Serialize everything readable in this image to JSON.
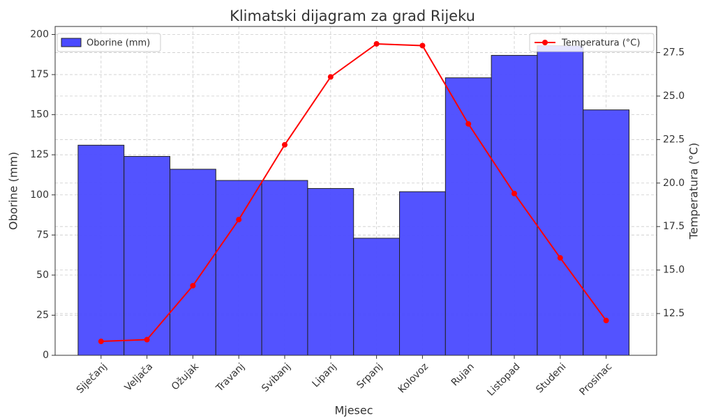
{
  "chart_data": {
    "type": "bar-line",
    "title": "Klimatski dijagram za grad Rijeku",
    "xlabel": "Mjesec",
    "ylabel": "Oborine (mm)",
    "y2label": "Temperatura (°C)",
    "categories": [
      "Siječanj",
      "Veljača",
      "Ožujak",
      "Travanj",
      "Svibanj",
      "Lipanj",
      "Srpanj",
      "Kolovoz",
      "Rujan",
      "Listopad",
      "Studeni",
      "Prosinac"
    ],
    "series": [
      {
        "name": "Oborine (mm)",
        "type": "bar",
        "color": "#4a4aff",
        "values": [
          131,
          124,
          116,
          109,
          109,
          104,
          73,
          102,
          173,
          187,
          193,
          153
        ]
      },
      {
        "name": "Temperatura (°C)",
        "type": "line",
        "axis": "y2",
        "color": "#ff0000",
        "values": [
          10.9,
          11.0,
          14.1,
          17.9,
          22.2,
          26.1,
          28.0,
          27.9,
          23.4,
          19.4,
          15.7,
          12.1
        ]
      }
    ],
    "ylim": [
      0,
      205
    ],
    "yticks": [
      0,
      25,
      50,
      75,
      100,
      125,
      150,
      175,
      200
    ],
    "y2lim": [
      10.1,
      29.0
    ],
    "y2ticks": [
      {
        "value": 12.5,
        "label": "12.5"
      },
      {
        "value": 15,
        "label": "15.0"
      },
      {
        "value": 17.5,
        "label": "17.5"
      },
      {
        "value": 20,
        "label": "20.0"
      },
      {
        "value": 22.5,
        "label": "22.5"
      },
      {
        "value": 25,
        "label": "25.0"
      },
      {
        "value": 27.5,
        "label": "27.5"
      }
    ],
    "grid": true,
    "legend": "upper-left",
    "legend2": "upper-right"
  }
}
